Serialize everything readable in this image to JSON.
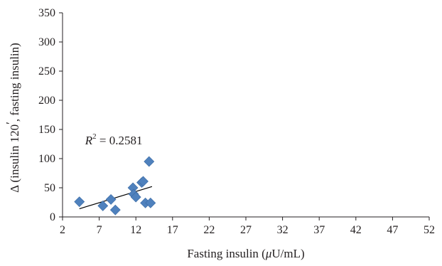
{
  "chart_data": {
    "type": "scatter",
    "xlabel_parts": [
      "Fasting insulin (",
      "μ",
      "U/mL)"
    ],
    "ylabel_parts": [
      "Δ (insulin 120",
      "′",
      ", fasting insulin)"
    ],
    "xlim": [
      2,
      52
    ],
    "ylim": [
      0,
      350
    ],
    "xticks": [
      2,
      7,
      12,
      17,
      22,
      27,
      32,
      37,
      42,
      47,
      52
    ],
    "yticks": [
      0,
      50,
      100,
      150,
      200,
      250,
      300,
      350
    ],
    "grid": false,
    "marker": "diamond",
    "series": [
      {
        "color": "#4f81bd",
        "points": [
          {
            "x": 4.3,
            "y": 26
          },
          {
            "x": 7.5,
            "y": 19
          },
          {
            "x": 8.6,
            "y": 30
          },
          {
            "x": 9.2,
            "y": 12
          },
          {
            "x": 11.6,
            "y": 50
          },
          {
            "x": 11.7,
            "y": 39
          },
          {
            "x": 12.0,
            "y": 34
          },
          {
            "x": 12.8,
            "y": 59
          },
          {
            "x": 13.0,
            "y": 61
          },
          {
            "x": 13.3,
            "y": 24
          },
          {
            "x": 13.8,
            "y": 95
          },
          {
            "x": 14.0,
            "y": 24
          }
        ]
      }
    ],
    "trendline": {
      "type": "linear",
      "x": [
        4.3,
        14.2
      ],
      "y": [
        14,
        52
      ]
    },
    "annotation": {
      "label": "R",
      "exponent": "2",
      "text": " = 0.2581",
      "x": 4.3,
      "y": 138
    }
  }
}
